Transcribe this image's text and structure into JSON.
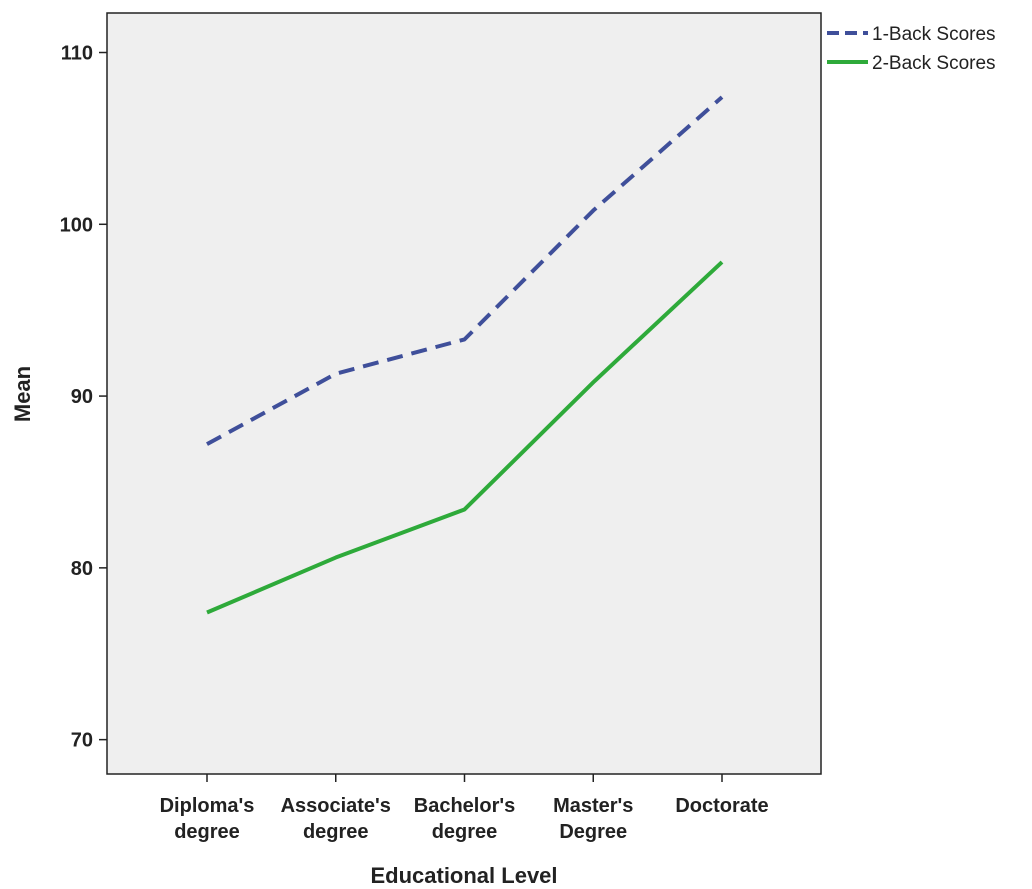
{
  "chart_data": {
    "type": "line",
    "title": "",
    "xlabel": "Educational Level",
    "ylabel": "Mean",
    "categories": [
      [
        "Diploma's",
        "degree"
      ],
      [
        "Associate's",
        "degree"
      ],
      [
        "Bachelor's",
        "degree"
      ],
      [
        "Master's",
        "Degree"
      ],
      [
        "Doctorate"
      ]
    ],
    "yticks": [
      70,
      80,
      90,
      100,
      110
    ],
    "ylim": [
      68,
      112.3
    ],
    "grid": false,
    "legend_position": "top-right",
    "series": [
      {
        "name": "1-Back Scores",
        "values": [
          87.2,
          91.3,
          93.3,
          100.8,
          107.4
        ],
        "color": "#3f4f9a",
        "style": "dashed"
      },
      {
        "name": "2-Back Scores",
        "values": [
          77.4,
          80.6,
          83.4,
          90.8,
          97.8
        ],
        "color": "#2eaa3a",
        "style": "solid"
      }
    ],
    "colors": {
      "plot_background": "#efefef",
      "axis": "#222222"
    }
  }
}
